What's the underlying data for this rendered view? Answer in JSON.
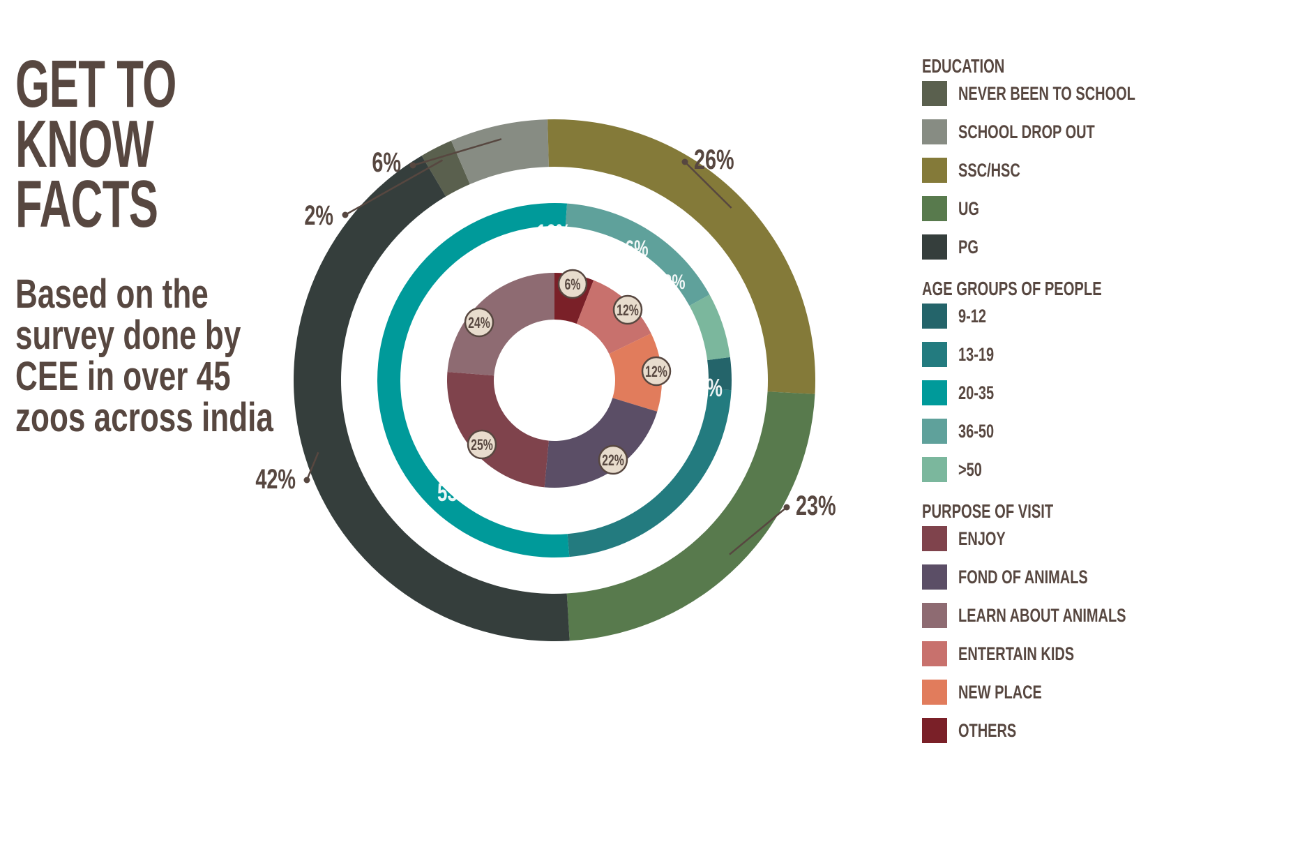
{
  "heading": {
    "lines": [
      "GET TO",
      "KNOW",
      "FACTS"
    ]
  },
  "subtext": {
    "lines": [
      "Based on the",
      "survey done by",
      "CEE in over 45",
      "zoos across india"
    ]
  },
  "colors": {
    "text": "#574740",
    "label_circle_fill": "#e8dccd"
  },
  "chart_data": [
    {
      "type": "pie",
      "ring": "outer",
      "legend_title": "EDUCATION",
      "slices": [
        {
          "label": "NEVER BEEN TO SCHOOL",
          "value": 2,
          "display": "2%",
          "color": "#5a604e"
        },
        {
          "label": "SCHOOL DROP OUT",
          "value": 6,
          "display": "6%",
          "color": "#878c83"
        },
        {
          "label": "SSC/HSC",
          "value": 26,
          "display": "26%",
          "color": "#847a39"
        },
        {
          "label": "UG",
          "value": 23,
          "display": "23%",
          "color": "#587a4d"
        },
        {
          "label": "PG",
          "value": 42,
          "display": "42%",
          "color": "#353e3c"
        }
      ]
    },
    {
      "type": "pie",
      "ring": "middle",
      "legend_title": "AGE GROUPS OF PEOPLE",
      "slices": [
        {
          "label": "9-12",
          "value": 3,
          "display": "3%",
          "color": "#24646a"
        },
        {
          "label": "13-19",
          "value": 23,
          "display": "23%",
          "color": "#237b7f"
        },
        {
          "label": "20-35",
          "value": 53,
          "display": "53%",
          "color": "#009a9a"
        },
        {
          "label": "36-50",
          "value": 16,
          "display": "16%",
          "color": "#5fa19b"
        },
        {
          "label": ">50",
          "value": 6,
          "display": "6%",
          "color": "#7bb79d"
        }
      ]
    },
    {
      "type": "pie",
      "ring": "inner",
      "legend_title": "PURPOSE OF VISIT",
      "slices": [
        {
          "label": "OTHERS",
          "value": 6,
          "display": "6%",
          "color": "#7a2028"
        },
        {
          "label": "ENTERTAIN KIDS",
          "value": 12,
          "display": "12%",
          "color": "#c8716d"
        },
        {
          "label": "NEW PLACE",
          "value": 12,
          "display": "12%",
          "color": "#e17c5c"
        },
        {
          "label": "FOND OF ANIMALS",
          "value": 22,
          "display": "22%",
          "color": "#5b4e66"
        },
        {
          "label": "ENJOY",
          "value": 25,
          "display": "25%",
          "color": "#7f434c"
        },
        {
          "label": "LEARN ABOUT ANIMALS",
          "value": 24,
          "display": "24%",
          "color": "#8e6b72"
        }
      ]
    }
  ],
  "legend": [
    {
      "title": "EDUCATION",
      "items": [
        {
          "label": "NEVER BEEN TO SCHOOL",
          "color": "#5a604e"
        },
        {
          "label": "SCHOOL DROP OUT",
          "color": "#878c83"
        },
        {
          "label": "SSC/HSC",
          "color": "#847a39"
        },
        {
          "label": "UG",
          "color": "#587a4d"
        },
        {
          "label": "PG",
          "color": "#353e3c"
        }
      ]
    },
    {
      "title": "AGE GROUPS OF PEOPLE",
      "items": [
        {
          "label": "9-12",
          "color": "#24646a"
        },
        {
          "label": "13-19",
          "color": "#237b7f"
        },
        {
          "label": "20-35",
          "color": "#009a9a"
        },
        {
          "label": "36-50",
          "color": "#5fa19b"
        },
        {
          "label": ">50",
          "color": "#7bb79d"
        }
      ]
    },
    {
      "title": "PURPOSE OF VISIT",
      "items": [
        {
          "label": "ENJOY",
          "color": "#7f434c"
        },
        {
          "label": "FOND OF ANIMALS",
          "color": "#5b4e66"
        },
        {
          "label": "LEARN ABOUT ANIMALS",
          "color": "#8e6b72"
        },
        {
          "label": "ENTERTAIN KIDS",
          "color": "#c8716d"
        },
        {
          "label": "NEW PLACE",
          "color": "#e17c5c"
        },
        {
          "label": "OTHERS",
          "color": "#7a2028"
        }
      ]
    }
  ]
}
